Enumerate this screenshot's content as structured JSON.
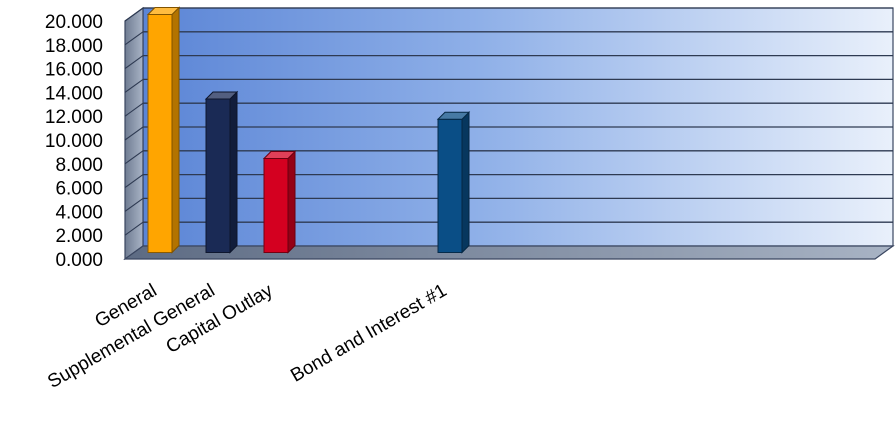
{
  "chart_data": {
    "type": "bar",
    "title": "",
    "xlabel": "",
    "ylabel": "",
    "ylim": [
      0,
      20
    ],
    "yticks": [
      "0.000",
      "2.000",
      "4.000",
      "6.000",
      "8.000",
      "10.000",
      "12.000",
      "14.000",
      "16.000",
      "18.000",
      "20.000"
    ],
    "grid": true,
    "categories": [
      "General",
      "Supplemental General",
      "Capital Outlay",
      "",
      "",
      "Bond and Interest #1",
      "",
      ""
    ],
    "values": [
      20.0,
      12.9,
      7.9,
      null,
      null,
      11.2,
      null,
      null
    ],
    "colors": [
      "#ffa500",
      "#1a2a55",
      "#d40020",
      null,
      null,
      "#0a4e86",
      null,
      null
    ]
  }
}
